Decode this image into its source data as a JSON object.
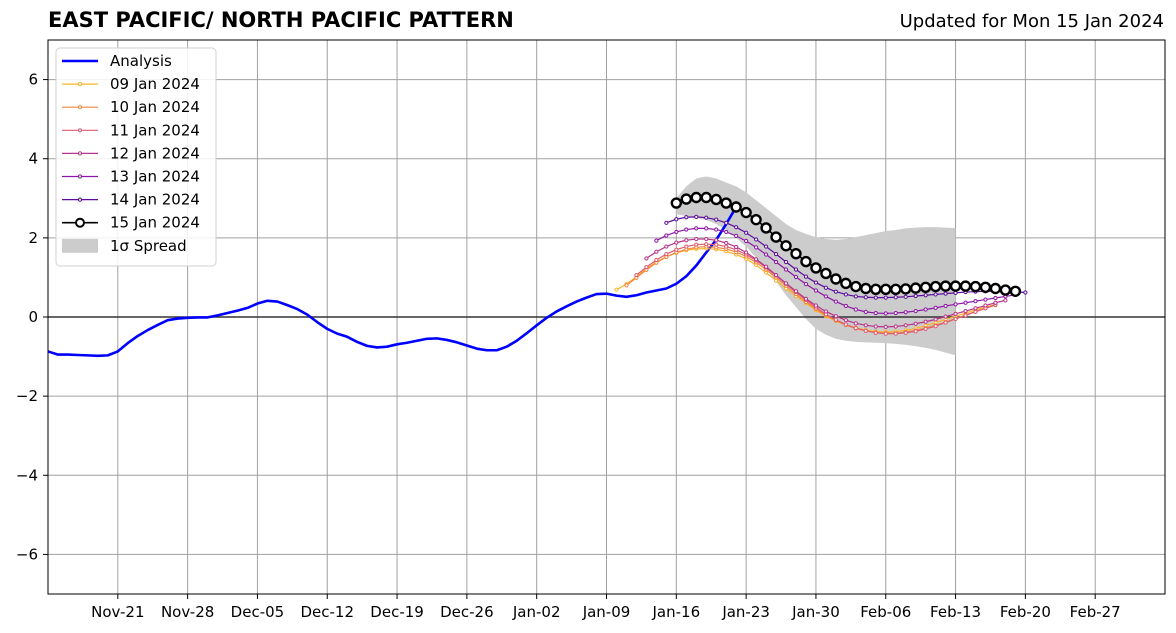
{
  "title": "EAST PACIFIC/ NORTH PACIFIC PATTERN",
  "subtitle": "Updated for Mon 15 Jan 2024",
  "chart_data": {
    "type": "line",
    "xlim": [
      "2023-11-14",
      "2024-03-05"
    ],
    "ylim": [
      -7,
      7
    ],
    "grid": true,
    "legend_position": "top-left",
    "x_ticks": [
      {
        "date": "2023-11-21",
        "label": "Nov-21"
      },
      {
        "date": "2023-11-28",
        "label": "Nov-28"
      },
      {
        "date": "2023-12-05",
        "label": "Dec-05"
      },
      {
        "date": "2023-12-12",
        "label": "Dec-12"
      },
      {
        "date": "2023-12-19",
        "label": "Dec-19"
      },
      {
        "date": "2023-12-26",
        "label": "Dec-26"
      },
      {
        "date": "2024-01-02",
        "label": "Jan-02"
      },
      {
        "date": "2024-01-09",
        "label": "Jan-09"
      },
      {
        "date": "2024-01-16",
        "label": "Jan-16"
      },
      {
        "date": "2024-01-23",
        "label": "Jan-23"
      },
      {
        "date": "2024-01-30",
        "label": "Jan-30"
      },
      {
        "date": "2024-02-06",
        "label": "Feb-06"
      },
      {
        "date": "2024-02-13",
        "label": "Feb-13"
      },
      {
        "date": "2024-02-20",
        "label": "Feb-20"
      },
      {
        "date": "2024-02-27",
        "label": "Feb-27"
      }
    ],
    "y_ticks": [
      {
        "value": 6,
        "label": "6"
      },
      {
        "value": 4,
        "label": "4"
      },
      {
        "value": 2,
        "label": "2"
      },
      {
        "value": 0,
        "label": "0"
      },
      {
        "value": -2,
        "label": "−2"
      },
      {
        "value": -4,
        "label": "−4"
      },
      {
        "value": -6,
        "label": "−6"
      }
    ],
    "spread": {
      "name": "1σ Spread",
      "color": "#cccccc",
      "start": "2024-01-16",
      "upper": [
        3.0,
        3.3,
        3.5,
        3.55,
        3.5,
        3.4,
        3.3,
        3.15,
        2.95,
        2.75,
        2.55,
        2.35,
        2.2,
        2.1,
        2.02,
        1.97,
        1.95,
        1.97,
        2.02,
        2.07,
        2.12,
        2.17,
        2.2,
        2.24,
        2.26,
        2.27,
        2.27,
        2.26,
        2.25
      ],
      "lower": [
        2.6,
        2.55,
        2.5,
        2.45,
        2.35,
        2.2,
        2.0,
        1.78,
        1.5,
        1.2,
        0.9,
        0.55,
        0.25,
        -0.05,
        -0.3,
        -0.45,
        -0.55,
        -0.6,
        -0.63,
        -0.64,
        -0.65,
        -0.66,
        -0.68,
        -0.7,
        -0.74,
        -0.78,
        -0.83,
        -0.9,
        -0.97
      ]
    },
    "analysis": {
      "name": "Analysis",
      "color": "#0000ff",
      "start": "2023-11-14",
      "values": [
        -0.87,
        -0.95,
        -0.95,
        -0.96,
        -0.97,
        -0.98,
        -0.97,
        -0.87,
        -0.66,
        -0.48,
        -0.33,
        -0.2,
        -0.08,
        -0.04,
        -0.02,
        -0.01,
        -0.01,
        0.04,
        0.1,
        0.16,
        0.23,
        0.34,
        0.41,
        0.39,
        0.3,
        0.2,
        0.06,
        -0.13,
        -0.3,
        -0.42,
        -0.5,
        -0.63,
        -0.73,
        -0.77,
        -0.75,
        -0.69,
        -0.65,
        -0.6,
        -0.55,
        -0.54,
        -0.58,
        -0.64,
        -0.72,
        -0.8,
        -0.84,
        -0.84,
        -0.75,
        -0.6,
        -0.41,
        -0.21,
        -0.02,
        0.14,
        0.27,
        0.39,
        0.49,
        0.58,
        0.59,
        0.54,
        0.51,
        0.55,
        0.62,
        0.67,
        0.72,
        0.84,
        1.03,
        1.3,
        1.63,
        1.95,
        2.35,
        2.78
      ]
    },
    "forecasts": [
      {
        "name": "09 Jan 2024",
        "color": "#fbb32b",
        "start": "2024-01-10",
        "values": [
          0.69,
          0.83,
          1.02,
          1.22,
          1.39,
          1.52,
          1.62,
          1.69,
          1.72,
          1.73,
          1.71,
          1.66,
          1.58,
          1.47,
          1.31,
          1.12,
          0.92,
          0.72,
          0.53,
          0.35,
          0.17,
          0.02,
          -0.1,
          -0.2,
          -0.27,
          -0.33,
          -0.37,
          -0.38,
          -0.37,
          -0.34,
          -0.29,
          -0.22,
          -0.14,
          -0.06,
          0.02,
          0.1,
          0.18,
          0.25,
          0.31
        ]
      },
      {
        "name": "10 Jan 2024",
        "color": "#f4843c",
        "start": "2024-01-11",
        "values": [
          0.8,
          0.99,
          1.19,
          1.37,
          1.52,
          1.63,
          1.71,
          1.76,
          1.78,
          1.76,
          1.72,
          1.64,
          1.53,
          1.38,
          1.2,
          1.0,
          0.79,
          0.58,
          0.38,
          0.2,
          0.04,
          -0.09,
          -0.2,
          -0.29,
          -0.35,
          -0.39,
          -0.41,
          -0.41,
          -0.38,
          -0.34,
          -0.28,
          -0.21,
          -0.13,
          -0.04,
          0.05,
          0.14,
          0.22,
          0.3
        ]
      },
      {
        "name": "11 Jan 2024",
        "color": "#e05a6e",
        "start": "2024-01-12",
        "values": [
          1.06,
          1.26,
          1.44,
          1.59,
          1.7,
          1.78,
          1.83,
          1.84,
          1.83,
          1.78,
          1.7,
          1.58,
          1.43,
          1.25,
          1.05,
          0.84,
          0.63,
          0.43,
          0.24,
          0.07,
          -0.07,
          -0.19,
          -0.28,
          -0.35,
          -0.4,
          -0.42,
          -0.42,
          -0.4,
          -0.36,
          -0.3,
          -0.23,
          -0.14,
          -0.05,
          0.04,
          0.13,
          0.22,
          0.31
        ]
      },
      {
        "name": "12 Jan 2024",
        "color": "#b8338a",
        "start": "2024-01-13",
        "values": [
          1.48,
          1.65,
          1.78,
          1.88,
          1.94,
          1.97,
          1.97,
          1.94,
          1.87,
          1.77,
          1.63,
          1.46,
          1.27,
          1.06,
          0.85,
          0.65,
          0.46,
          0.29,
          0.14,
          0.02,
          -0.08,
          -0.16,
          -0.21,
          -0.24,
          -0.25,
          -0.24,
          -0.21,
          -0.17,
          -0.12,
          -0.06,
          0.01,
          0.08,
          0.15,
          0.22,
          0.29,
          0.36,
          0.42
        ]
      },
      {
        "name": "13 Jan 2024",
        "color": "#8e14a8",
        "start": "2024-01-14",
        "values": [
          1.93,
          2.06,
          2.15,
          2.21,
          2.24,
          2.24,
          2.21,
          2.15,
          2.05,
          1.92,
          1.76,
          1.58,
          1.39,
          1.2,
          1.01,
          0.83,
          0.67,
          0.52,
          0.39,
          0.28,
          0.19,
          0.13,
          0.1,
          0.09,
          0.1,
          0.12,
          0.15,
          0.19,
          0.23,
          0.28,
          0.32,
          0.36,
          0.4,
          0.44,
          0.48,
          0.52,
          0.56
        ]
      },
      {
        "name": "14 Jan 2024",
        "color": "#5a0a9e",
        "start": "2024-01-15",
        "values": [
          2.38,
          2.47,
          2.52,
          2.53,
          2.51,
          2.46,
          2.38,
          2.27,
          2.13,
          1.96,
          1.78,
          1.59,
          1.39,
          1.2,
          1.02,
          0.87,
          0.74,
          0.64,
          0.57,
          0.52,
          0.5,
          0.49,
          0.49,
          0.5,
          0.51,
          0.53,
          0.55,
          0.57,
          0.59,
          0.61,
          0.63,
          0.64,
          0.65,
          0.65,
          0.65,
          0.64,
          0.62
        ]
      },
      {
        "name": "15 Jan 2024",
        "color": "#000000",
        "start": "2024-01-16",
        "values": [
          2.88,
          2.98,
          3.02,
          3.02,
          2.97,
          2.88,
          2.78,
          2.64,
          2.46,
          2.25,
          2.02,
          1.8,
          1.6,
          1.4,
          1.24,
          1.1,
          0.96,
          0.85,
          0.77,
          0.72,
          0.7,
          0.7,
          0.7,
          0.71,
          0.73,
          0.75,
          0.77,
          0.78,
          0.78,
          0.78,
          0.77,
          0.75,
          0.72,
          0.68,
          0.65
        ]
      }
    ]
  }
}
